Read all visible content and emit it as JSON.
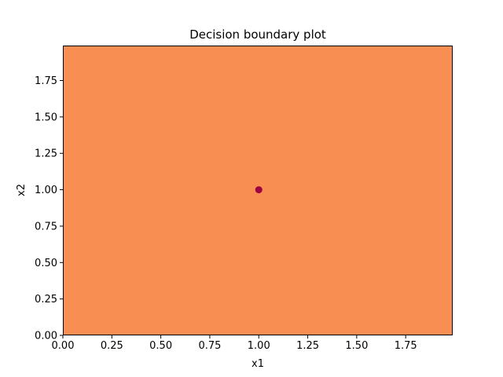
{
  "chart_data": {
    "type": "scatter",
    "title": "Decision boundary plot",
    "xlabel": "x1",
    "ylabel": "x2",
    "xlim": [
      0.0,
      1.99
    ],
    "ylim": [
      0.0,
      1.99
    ],
    "xticks": [
      0.0,
      0.25,
      0.5,
      0.75,
      1.0,
      1.25,
      1.5,
      1.75
    ],
    "yticks": [
      0.0,
      0.25,
      0.5,
      0.75,
      1.0,
      1.25,
      1.5,
      1.75
    ],
    "xtick_labels": [
      "0.00",
      "0.25",
      "0.50",
      "0.75",
      "1.00",
      "1.25",
      "1.50",
      "1.75"
    ],
    "ytick_labels": [
      "0.00",
      "0.25",
      "0.50",
      "0.75",
      "1.00",
      "1.25",
      "1.50",
      "1.75"
    ],
    "background_region": {
      "x": [
        0.0,
        1.99
      ],
      "y": [
        0.0,
        1.99
      ],
      "color": "#f98e52"
    },
    "points": [
      {
        "x": 1.0,
        "y": 1.0,
        "color": "#9e0142"
      }
    ],
    "grid": false,
    "legend": false
  }
}
